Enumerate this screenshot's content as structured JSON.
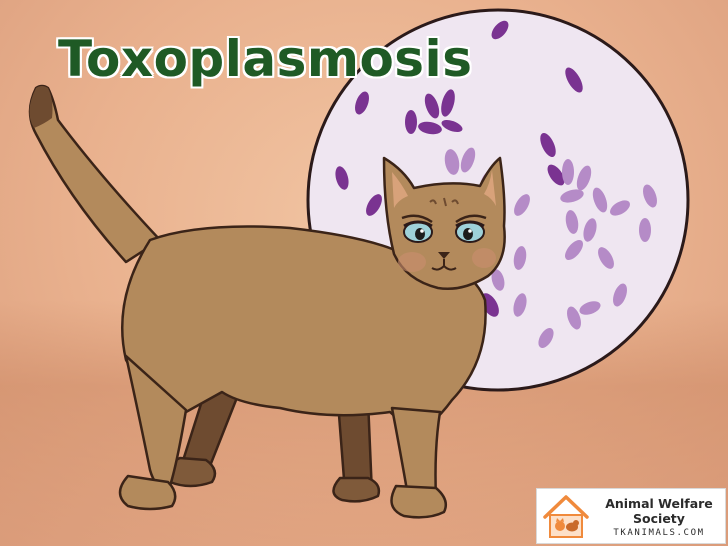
{
  "title": "Toxoplasmosis",
  "logo": {
    "name_line1": "Animal Welfare",
    "name_line2": "Society",
    "url": "TKANIMALS.COM"
  },
  "colors": {
    "title_green": "#1f5a25",
    "background_peach": "#eab592",
    "cat_fur": "#b38a5c",
    "cell_lavender": "#efe6f1",
    "parasite_purple": "#7a3391",
    "logo_orange": "#f08a3c"
  }
}
